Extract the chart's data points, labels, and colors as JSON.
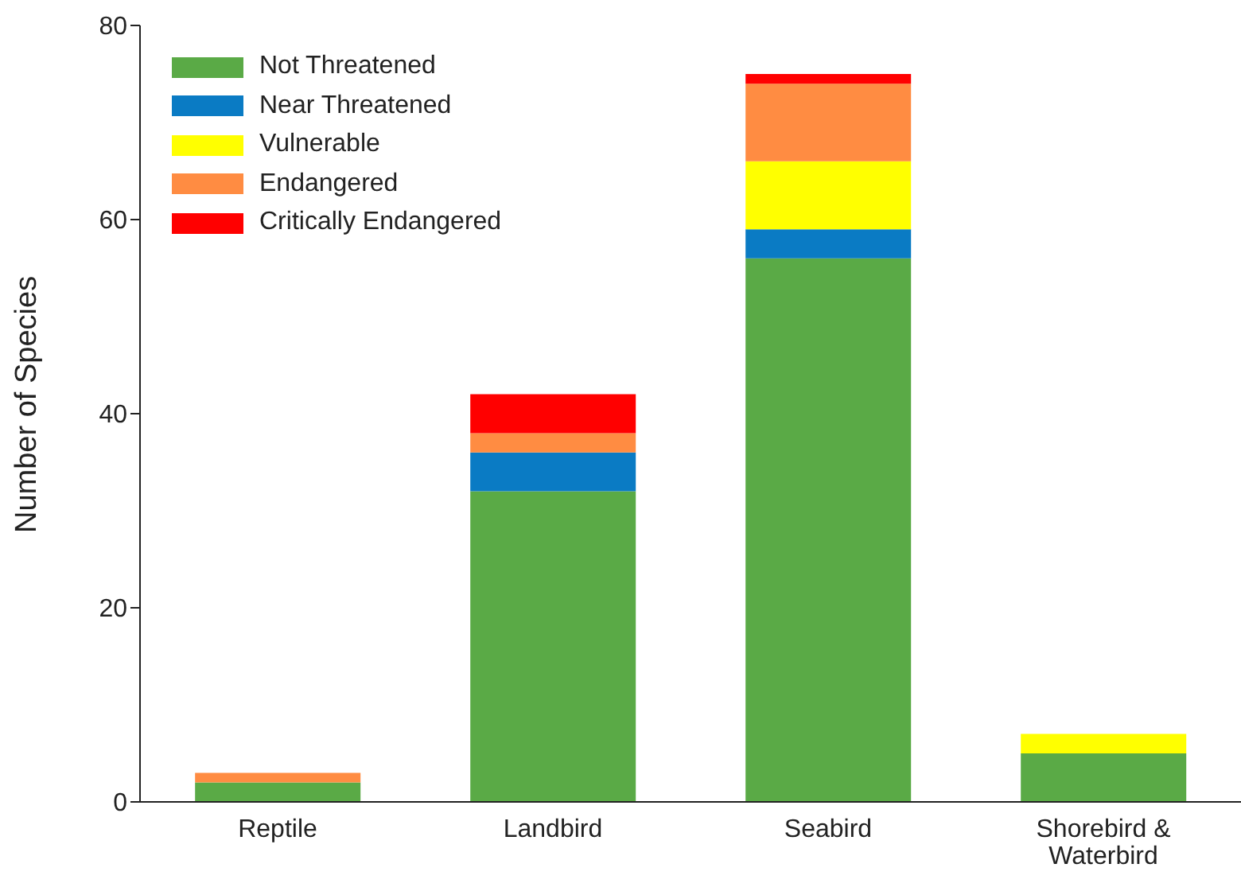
{
  "chart_data": {
    "type": "bar",
    "stacked": true,
    "ylabel": "Number of Species",
    "categories": [
      "Reptile",
      "Landbird",
      "Seabird",
      "Shorebird & Waterbird"
    ],
    "series": [
      {
        "name": "Not Threatened",
        "color": "#5aaa46",
        "values": [
          2,
          32,
          56,
          5
        ]
      },
      {
        "name": "Near Threatened",
        "color": "#0a7bc4",
        "values": [
          0,
          4,
          3,
          0
        ]
      },
      {
        "name": "Vulnerable",
        "color": "#ffff00",
        "values": [
          0,
          0,
          7,
          2
        ]
      },
      {
        "name": "Endangered",
        "color": "#ff8c42",
        "values": [
          1,
          2,
          8,
          0
        ]
      },
      {
        "name": "Critically Endangered",
        "color": "#ff0000",
        "values": [
          0,
          4,
          1,
          0
        ]
      }
    ],
    "ylim": [
      0,
      80
    ],
    "yticks": [
      0,
      20,
      40,
      60,
      80
    ],
    "grid": false,
    "legend": "top left"
  }
}
